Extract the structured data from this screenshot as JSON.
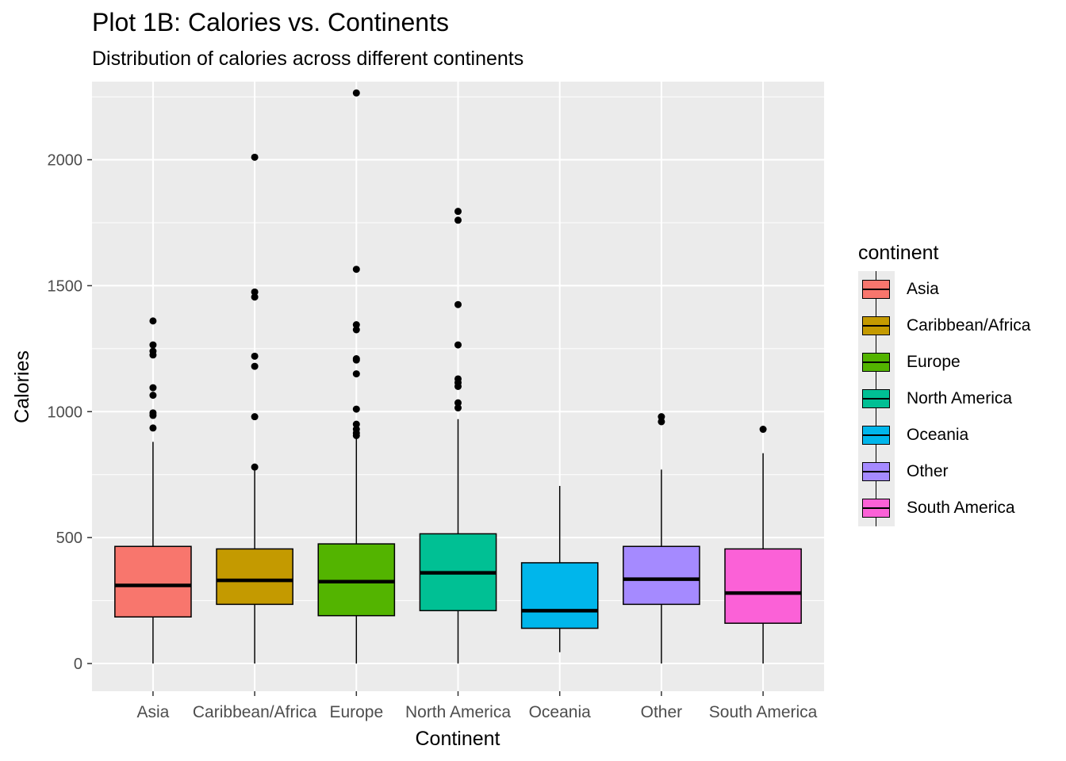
{
  "title": "Plot 1B: Calories vs. Continents",
  "subtitle": "Distribution of calories across different continents",
  "chart_data": {
    "type": "box",
    "title": "Plot 1B: Calories vs. Continents",
    "subtitle": "Distribution of calories across different continents",
    "xlabel": "Continent",
    "ylabel": "Calories",
    "ylim": [
      -110,
      2310
    ],
    "yticks": [
      0,
      500,
      1000,
      1500,
      2000
    ],
    "grid": true,
    "legend_title": "continent",
    "legend_position": "right",
    "categories": [
      "Asia",
      "Caribbean/Africa",
      "Europe",
      "North America",
      "Oceania",
      "Other",
      "South America"
    ],
    "colors": [
      "#F8766D",
      "#C49A00",
      "#53B400",
      "#00C094",
      "#00B6EB",
      "#A58AFF",
      "#FB61D7"
    ],
    "boxes": [
      {
        "category": "Asia",
        "min": 0,
        "q1": 185,
        "median": 310,
        "q3": 465,
        "max": 880,
        "outliers": [
          935,
          985,
          995,
          1065,
          1095,
          1225,
          1240,
          1265,
          1360
        ]
      },
      {
        "category": "Caribbean/Africa",
        "min": 0,
        "q1": 235,
        "median": 330,
        "q3": 455,
        "max": 780,
        "outliers": [
          780,
          980,
          1180,
          1220,
          1455,
          1475,
          2010
        ]
      },
      {
        "category": "Europe",
        "min": 0,
        "q1": 190,
        "median": 325,
        "q3": 475,
        "max": 900,
        "outliers": [
          905,
          915,
          930,
          950,
          1010,
          1150,
          1205,
          1210,
          1325,
          1345,
          1565,
          2265
        ]
      },
      {
        "category": "North America",
        "min": 0,
        "q1": 210,
        "median": 360,
        "q3": 515,
        "max": 970,
        "outliers": [
          1015,
          1035,
          1100,
          1115,
          1130,
          1265,
          1425,
          1760,
          1795
        ]
      },
      {
        "category": "Oceania",
        "min": 45,
        "q1": 140,
        "median": 210,
        "q3": 400,
        "max": 705,
        "outliers": []
      },
      {
        "category": "Other",
        "min": 0,
        "q1": 235,
        "median": 335,
        "q3": 465,
        "max": 770,
        "outliers": [
          960,
          980
        ]
      },
      {
        "category": "South America",
        "min": 0,
        "q1": 160,
        "median": 280,
        "q3": 455,
        "max": 835,
        "outliers": [
          930
        ]
      }
    ]
  }
}
